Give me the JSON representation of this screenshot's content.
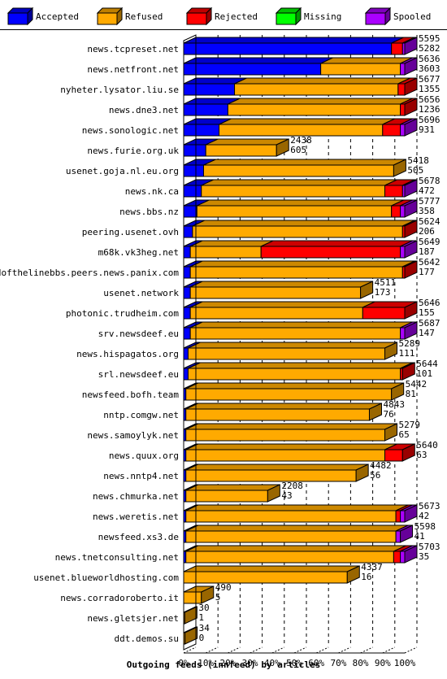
{
  "chart_data": {
    "type": "bar",
    "stacked": true,
    "orientation": "horizontal",
    "title": "Outgoing feeds (innfeed) by articles",
    "xlabel": "Outgoing feeds (innfeed) by articles",
    "x_ticks": [
      "0%",
      "10%",
      "20%",
      "30%",
      "40%",
      "50%",
      "60%",
      "70%",
      "80%",
      "90%",
      "100%"
    ],
    "xlim": [
      0,
      100
    ],
    "grid": "vertical dashed",
    "legend_position": "top",
    "series": [
      {
        "name": "Accepted",
        "color": "#0000ff"
      },
      {
        "name": "Refused",
        "color": "#ffaa00"
      },
      {
        "name": "Rejected",
        "color": "#ff0000"
      },
      {
        "name": "Missing",
        "color": "#00ff00"
      },
      {
        "name": "Spooled",
        "color": "#aa00ff"
      }
    ],
    "rows": [
      {
        "name": "news.tcpreset.net",
        "offered": 5595,
        "accepted": 5282,
        "pct": [
          94,
          0,
          5,
          0,
          1
        ]
      },
      {
        "name": "news.netfront.net",
        "offered": 5636,
        "accepted": 3603,
        "pct": [
          62,
          36,
          0,
          0,
          2
        ]
      },
      {
        "name": "nyheter.lysator.liu.se",
        "offered": 5677,
        "accepted": 1355,
        "pct": [
          23,
          74,
          3,
          0,
          0
        ]
      },
      {
        "name": "news.dne3.net",
        "offered": 5656,
        "accepted": 1236,
        "pct": [
          20,
          78,
          2,
          0,
          0
        ]
      },
      {
        "name": "news.sonologic.net",
        "offered": 5696,
        "accepted": 931,
        "pct": [
          16,
          74,
          8,
          0,
          2
        ]
      },
      {
        "name": "news.furie.org.uk",
        "offered": 2438,
        "accepted": 605,
        "pct": [
          10,
          32,
          0,
          0,
          0
        ]
      },
      {
        "name": "usenet.goja.nl.eu.org",
        "offered": 5418,
        "accepted": 505,
        "pct": [
          9,
          86,
          0,
          0,
          0
        ]
      },
      {
        "name": "news.nk.ca",
        "offered": 5678,
        "accepted": 472,
        "pct": [
          8,
          83,
          8,
          0,
          1
        ]
      },
      {
        "name": "news.bbs.nz",
        "offered": 5777,
        "accepted": 358,
        "pct": [
          6,
          88,
          4,
          0,
          2
        ]
      },
      {
        "name": "peering.usenet.ovh",
        "offered": 5624,
        "accepted": 206,
        "pct": [
          4,
          95,
          1,
          0,
          0
        ]
      },
      {
        "name": "m68k.vk3heg.net",
        "offered": 5649,
        "accepted": 187,
        "pct": [
          3,
          32,
          63,
          0,
          2
        ]
      },
      {
        "name": "endofthelinebbs.peers.news.panix.com",
        "offered": 5642,
        "accepted": 177,
        "pct": [
          3,
          96,
          1,
          0,
          0
        ]
      },
      {
        "name": "usenet.network",
        "offered": 4511,
        "accepted": 173,
        "pct": [
          3,
          77,
          0,
          0,
          0
        ]
      },
      {
        "name": "photonic.trudheim.com",
        "offered": 5646,
        "accepted": 155,
        "pct": [
          3,
          78,
          19,
          0,
          0
        ]
      },
      {
        "name": "srv.newsdeef.eu",
        "offered": 5687,
        "accepted": 147,
        "pct": [
          3,
          95,
          0,
          0,
          2
        ]
      },
      {
        "name": "news.hispagatos.org",
        "offered": 5289,
        "accepted": 111,
        "pct": [
          2,
          89,
          0,
          0,
          0
        ]
      },
      {
        "name": "srl.newsdeef.eu",
        "offered": 5644,
        "accepted": 101,
        "pct": [
          2,
          96,
          1,
          0,
          0
        ]
      },
      {
        "name": "newsfeed.bofh.team",
        "offered": 5442,
        "accepted": 81,
        "pct": [
          1,
          93,
          0,
          0,
          0
        ]
      },
      {
        "name": "nntp.comgw.net",
        "offered": 4843,
        "accepted": 76,
        "pct": [
          1,
          83,
          0,
          0,
          0
        ]
      },
      {
        "name": "news.samoylyk.net",
        "offered": 5279,
        "accepted": 65,
        "pct": [
          1,
          90,
          0,
          0,
          0
        ]
      },
      {
        "name": "news.quux.org",
        "offered": 5640,
        "accepted": 63,
        "pct": [
          1,
          90,
          8,
          0,
          0
        ]
      },
      {
        "name": "news.nntp4.net",
        "offered": 4482,
        "accepted": 56,
        "pct": [
          1,
          77,
          0,
          0,
          0
        ]
      },
      {
        "name": "news.chmurka.net",
        "offered": 2208,
        "accepted": 43,
        "pct": [
          1,
          37,
          0,
          0,
          0
        ]
      },
      {
        "name": "news.weretis.net",
        "offered": 5673,
        "accepted": 42,
        "pct": [
          1,
          95,
          2,
          0,
          2
        ]
      },
      {
        "name": "newsfeed.xs3.de",
        "offered": 5598,
        "accepted": 41,
        "pct": [
          1,
          95,
          0,
          0,
          2
        ]
      },
      {
        "name": "news.tnetconsulting.net",
        "offered": 5703,
        "accepted": 35,
        "pct": [
          1,
          94,
          3,
          0,
          2
        ]
      },
      {
        "name": "usenet.blueworldhosting.com",
        "offered": 4337,
        "accepted": 16,
        "pct": [
          0,
          74,
          0,
          0,
          0
        ]
      },
      {
        "name": "news.corradoroberto.it",
        "offered": 490,
        "accepted": 5,
        "pct": [
          0,
          8,
          0,
          0,
          0
        ]
      },
      {
        "name": "news.gletsjer.net",
        "offered": 30,
        "accepted": 1,
        "pct": [
          0,
          0.5,
          0,
          0,
          0
        ]
      },
      {
        "name": "ddt.demos.su",
        "offered": 34,
        "accepted": 0,
        "pct": [
          0,
          0.6,
          0,
          0,
          0
        ]
      }
    ]
  }
}
